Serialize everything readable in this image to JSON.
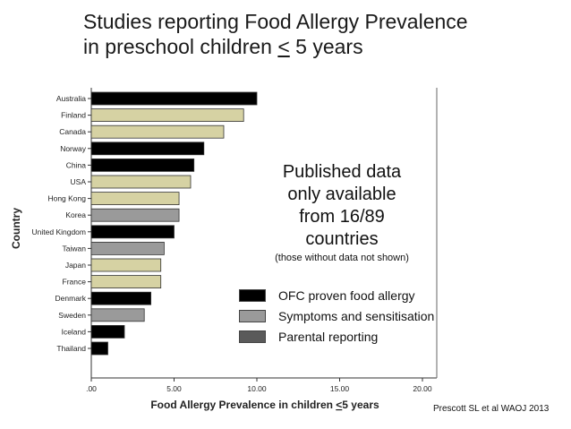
{
  "title": {
    "line1": "Studies reporting Food Allergy Prevalence",
    "line2_pre": "in preschool children ",
    "line2_sym": "<",
    "line2_post": " 5 years"
  },
  "note": {
    "line1": "Published data",
    "line2": "only available",
    "line3": "from 16/89",
    "line4": "countries",
    "sub": "(those without data not shown)"
  },
  "legend": [
    {
      "label": "OFC proven food allergy",
      "color": "#000000"
    },
    {
      "label": "Symptoms and sensitisation",
      "color": "#9a9a9a"
    },
    {
      "label": "Parental reporting",
      "color": "#5a5a5a"
    }
  ],
  "citation": "Prescott SL et al WAOJ 2013",
  "chart_data": {
    "type": "bar",
    "orientation": "horizontal",
    "title": "Studies reporting Food Allergy Prevalence in preschool children < 5 years",
    "xlabel_pre": "Food Allergy Prevalence in children ",
    "xlabel_sym": "<",
    "xlabel_post": "5 years",
    "ylabel": "Country",
    "xlim": [
      0,
      20
    ],
    "xticks": [
      0,
      5,
      10,
      15,
      20
    ],
    "xtick_labels": [
      ".00",
      "5.00",
      "10.00",
      "15.00",
      "20.00"
    ],
    "categories": [
      "Australia",
      "Finland",
      "Canada",
      "Norway",
      "China",
      "USA",
      "Hong Kong",
      "Korea",
      "United Kingdom",
      "Taiwan",
      "Japan",
      "France",
      "Denmark",
      "Sweden",
      "Iceland",
      "Thailand"
    ],
    "values": [
      10.0,
      9.2,
      8.0,
      6.8,
      6.2,
      6.0,
      5.3,
      5.3,
      5.0,
      4.4,
      4.2,
      4.2,
      3.6,
      3.2,
      2.0,
      1.0
    ],
    "colors": [
      "#000000",
      "#d6d2a3",
      "#d6d2a3",
      "#000000",
      "#000000",
      "#d6d2a3",
      "#d6d2a3",
      "#9a9a9a",
      "#000000",
      "#9a9a9a",
      "#d6d2a3",
      "#d6d2a3",
      "#000000",
      "#9a9a9a",
      "#000000",
      "#000000"
    ]
  }
}
